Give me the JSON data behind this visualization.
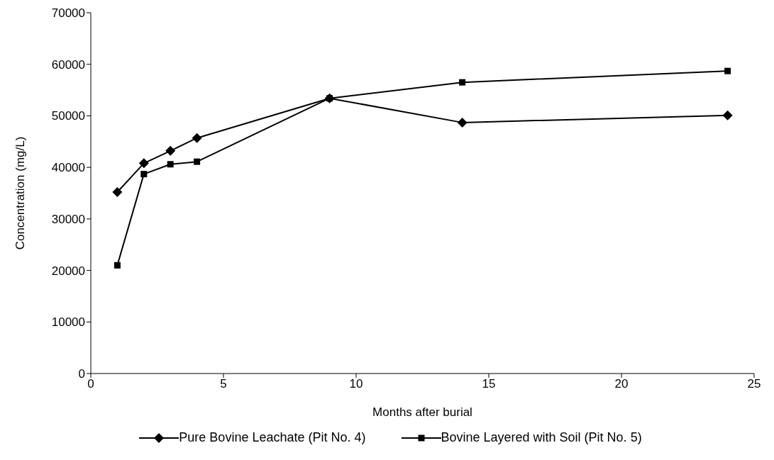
{
  "chart_data": {
    "type": "line",
    "xlabel": "Months after burial",
    "ylabel": "Concentration (mg/L)",
    "x": [
      1,
      2,
      3,
      4,
      9,
      14,
      24
    ],
    "series": [
      {
        "name": "Pure Bovine Leachate (Pit No. 4)",
        "color": "#000000",
        "marker": "diamond",
        "values": [
          35200,
          40800,
          43200,
          45700,
          53400,
          48700,
          50100
        ]
      },
      {
        "name": "Bovine Layered with Soil (Pit No. 5)",
        "color": "#000000",
        "marker": "square",
        "values": [
          21000,
          38700,
          40600,
          41100,
          53400,
          56500,
          58700
        ]
      }
    ],
    "xlim": [
      0,
      25
    ],
    "xticks": [
      0,
      5,
      10,
      15,
      20,
      25
    ],
    "ylim": [
      0,
      70000
    ],
    "yticks": [
      0,
      10000,
      20000,
      30000,
      40000,
      50000,
      60000,
      70000
    ],
    "grid": false,
    "legend": "bottom",
    "line_style": "solid"
  }
}
